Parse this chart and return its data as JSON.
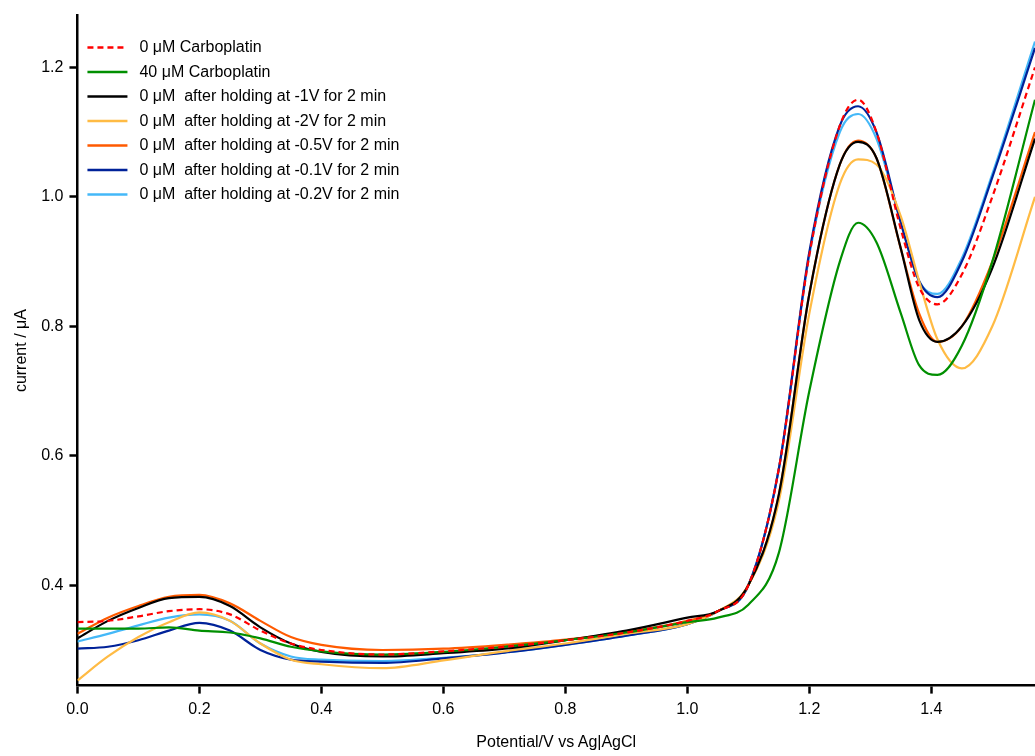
{
  "chart_data": {
    "type": "line",
    "xlabel": "Potential/V vs Ag|AgCl",
    "ylabel": "current / μA",
    "xlim": [
      0,
      1.57
    ],
    "ylim": [
      0.245,
      1.28
    ],
    "xticks": [
      {
        "value": 0,
        "label": "0.0"
      },
      0.2,
      0.4,
      0.6,
      0.8,
      {
        "value": 1,
        "label": "1.0"
      },
      1.2,
      1.4
    ],
    "yticks": [
      0.4,
      0.6,
      0.8,
      {
        "value": 1,
        "label": "1.0"
      },
      1.2
    ],
    "grid": false,
    "legend": "top left",
    "marker": "none",
    "line_style": "solid",
    "x": [
      0,
      0.05,
      0.1,
      0.15,
      0.2,
      0.25,
      0.3,
      0.35,
      0.4,
      0.5,
      0.6,
      0.7,
      0.8,
      0.9,
      1.0,
      1.05,
      1.1,
      1.15,
      1.2,
      1.25,
      1.28,
      1.31,
      1.35,
      1.38,
      1.41,
      1.45,
      1.5,
      1.57
    ],
    "series": [
      {
        "name": "0 μM Carboplatin",
        "color": "#ff0000",
        "line_style": "dashed",
        "values": [
          0.343,
          0.345,
          0.352,
          0.36,
          0.363,
          0.355,
          0.33,
          0.31,
          0.3,
          0.293,
          0.298,
          0.305,
          0.315,
          0.327,
          0.345,
          0.36,
          0.4,
          0.58,
          0.91,
          1.11,
          1.15,
          1.1,
          0.95,
          0.86,
          0.834,
          0.88,
          1.0,
          1.2
        ]
      },
      {
        "name": "40 μM Carboplatin",
        "color": "#008f00",
        "values": [
          0.333,
          0.333,
          0.333,
          0.335,
          0.33,
          0.327,
          0.318,
          0.305,
          0.298,
          0.293,
          0.297,
          0.305,
          0.315,
          0.327,
          0.343,
          0.35,
          0.37,
          0.45,
          0.7,
          0.9,
          0.96,
          0.93,
          0.82,
          0.74,
          0.725,
          0.77,
          0.9,
          1.15
        ]
      },
      {
        "name": "0 μM  after holding at -1V for 2 min",
        "color": "#000000",
        "values": [
          0.318,
          0.345,
          0.365,
          0.38,
          0.382,
          0.368,
          0.335,
          0.31,
          0.297,
          0.29,
          0.295,
          0.302,
          0.315,
          0.33,
          0.35,
          0.36,
          0.4,
          0.54,
          0.85,
          1.05,
          1.085,
          1.06,
          0.92,
          0.81,
          0.776,
          0.8,
          0.89,
          1.09
        ]
      },
      {
        "name": "0 μM  after holding at -2V for 2 min",
        "color": "#ffbb44",
        "values": [
          0.253,
          0.29,
          0.32,
          0.343,
          0.358,
          0.345,
          0.31,
          0.285,
          0.278,
          0.272,
          0.284,
          0.298,
          0.31,
          0.325,
          0.34,
          0.36,
          0.4,
          0.53,
          0.82,
          1.02,
          1.058,
          1.05,
          0.97,
          0.87,
          0.78,
          0.735,
          0.8,
          1.0
        ]
      },
      {
        "name": "0 μM  after holding at -0.5V for 2 min",
        "color": "#ff5a00",
        "values": [
          0.325,
          0.35,
          0.368,
          0.382,
          0.385,
          0.372,
          0.345,
          0.32,
          0.308,
          0.3,
          0.302,
          0.308,
          0.316,
          0.328,
          0.345,
          0.36,
          0.4,
          0.54,
          0.85,
          1.05,
          1.087,
          1.06,
          0.92,
          0.82,
          0.776,
          0.8,
          0.9,
          1.1
        ]
      },
      {
        "name": "0 μM  after holding at -0.1V for 2 min",
        "color": "#002299",
        "values": [
          0.302,
          0.305,
          0.315,
          0.33,
          0.342,
          0.33,
          0.3,
          0.285,
          0.282,
          0.28,
          0.287,
          0.296,
          0.308,
          0.322,
          0.34,
          0.36,
          0.4,
          0.58,
          0.915,
          1.11,
          1.14,
          1.1,
          0.96,
          0.87,
          0.845,
          0.9,
          1.03,
          1.23
        ]
      },
      {
        "name": "0 μM  after holding at -0.2V for 2 min",
        "color": "#44b8f8",
        "values": [
          0.313,
          0.325,
          0.338,
          0.35,
          0.355,
          0.345,
          0.31,
          0.29,
          0.285,
          0.283,
          0.288,
          0.296,
          0.308,
          0.322,
          0.34,
          0.36,
          0.4,
          0.58,
          0.91,
          1.1,
          1.128,
          1.09,
          0.96,
          0.87,
          0.85,
          0.905,
          1.035,
          1.24
        ]
      }
    ]
  }
}
